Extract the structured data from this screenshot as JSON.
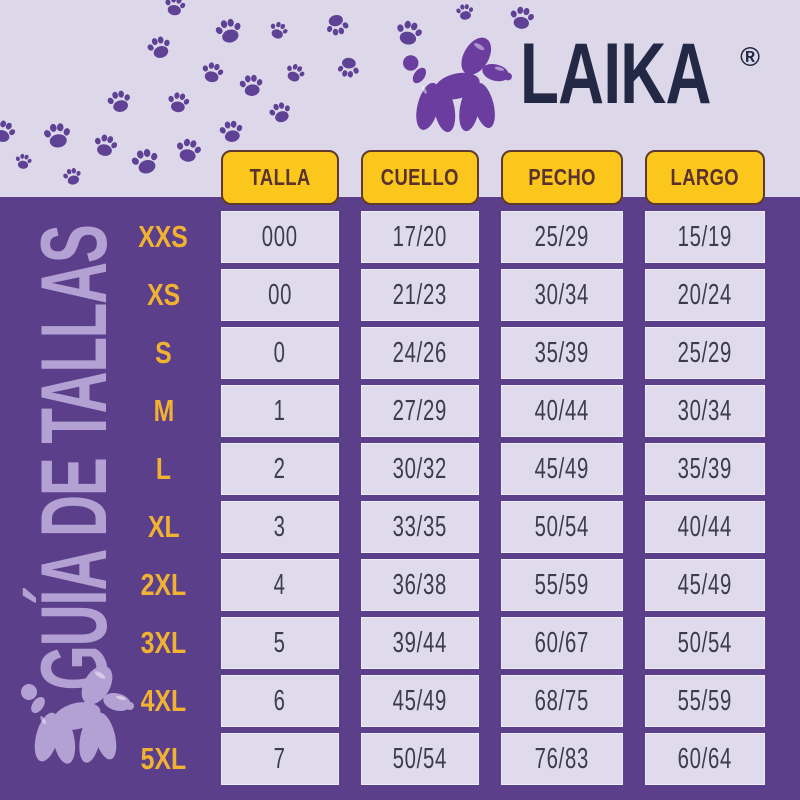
{
  "brand": {
    "name": "LAIKA",
    "registered": "®",
    "logo_icon": "balloon-dog-icon"
  },
  "title": "GUÍA DE TALLAS",
  "decor": {
    "paw_icon": "paw-icon",
    "corner_mascot_icon": "balloon-dog-icon"
  },
  "colors": {
    "background_purple": "#5c3f8a",
    "band_lavender": "#dcd8ea",
    "header_yellow": "#fcc71d",
    "header_border_brown": "#5f3a2b",
    "header_text_brown": "#5a322c",
    "row_label_gold": "#f2b231",
    "cell_lavender": "#dfdbec",
    "cell_text_dark": "#3c3c4b",
    "logo_navy": "#232844",
    "logo_purple": "#6a3d9f",
    "light_purple": "#b3a1d3",
    "paw_purple": "#5f4195"
  },
  "table": {
    "columns": [
      "TALLA",
      "CUELLO",
      "PECHO",
      "LARGO"
    ],
    "rows": [
      {
        "size": "XXS",
        "talla": "000",
        "cuello": "17/20",
        "pecho": "25/29",
        "largo": "15/19"
      },
      {
        "size": "XS",
        "talla": "00",
        "cuello": "21/23",
        "pecho": "30/34",
        "largo": "20/24"
      },
      {
        "size": "S",
        "talla": "0",
        "cuello": "24/26",
        "pecho": "35/39",
        "largo": "25/29"
      },
      {
        "size": "M",
        "talla": "1",
        "cuello": "27/29",
        "pecho": "40/44",
        "largo": "30/34"
      },
      {
        "size": "L",
        "talla": "2",
        "cuello": "30/32",
        "pecho": "45/49",
        "largo": "35/39"
      },
      {
        "size": "XL",
        "talla": "3",
        "cuello": "33/35",
        "pecho": "50/54",
        "largo": "40/44"
      },
      {
        "size": "2XL",
        "talla": "4",
        "cuello": "36/38",
        "pecho": "55/59",
        "largo": "45/49"
      },
      {
        "size": "3XL",
        "talla": "5",
        "cuello": "39/44",
        "pecho": "60/67",
        "largo": "50/54"
      },
      {
        "size": "4XL",
        "talla": "6",
        "cuello": "45/49",
        "pecho": "68/75",
        "largo": "55/59"
      },
      {
        "size": "5XL",
        "talla": "7",
        "cuello": "50/54",
        "pecho": "76/83",
        "largo": "60/64"
      }
    ]
  }
}
